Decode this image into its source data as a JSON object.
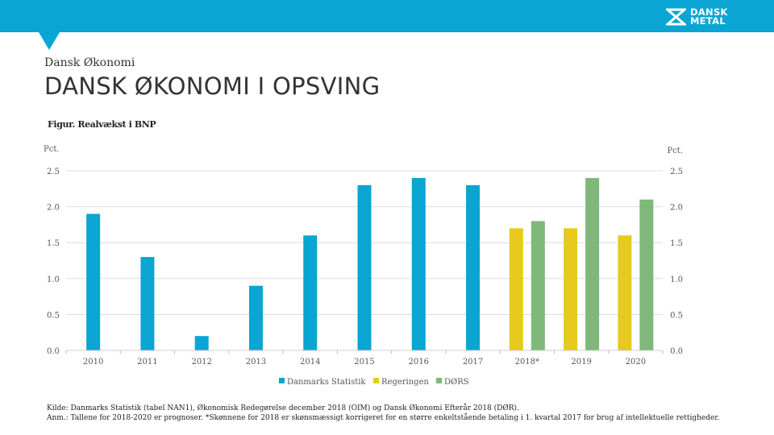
{
  "header": {
    "brand_line1": "DANSK",
    "brand_line2": "METAL",
    "section": "Dansk Økonomi",
    "title": "DANSK ØKONOMI I OPSVING"
  },
  "colors": {
    "header_bg": "#0aa5d3",
    "series_dst": "#0aa5d3",
    "series_reg": "#e6ca1d",
    "series_dors": "#80b879",
    "grid": "#dcdcdc"
  },
  "chart_data": {
    "type": "bar",
    "title": "Figur. Realvækst i BNP",
    "ylabel_left": "Pct.",
    "ylabel_right": "Pct.",
    "ylim": [
      0,
      2.5
    ],
    "yticks": [
      "0.0",
      "0.5",
      "1.0",
      "1.5",
      "2.0",
      "2.5"
    ],
    "categories": [
      "2010",
      "2011",
      "2012",
      "2013",
      "2014",
      "2015",
      "2016",
      "2017",
      "2018*",
      "2019",
      "2020"
    ],
    "series": [
      {
        "name": "Danmarks Statistik",
        "values": [
          1.9,
          1.3,
          0.2,
          0.9,
          1.6,
          2.3,
          2.4,
          2.3,
          null,
          null,
          null
        ]
      },
      {
        "name": "Regeringen",
        "values": [
          null,
          null,
          null,
          null,
          null,
          null,
          null,
          null,
          1.7,
          1.7,
          1.6
        ]
      },
      {
        "name": "DØRS",
        "values": [
          null,
          null,
          null,
          null,
          null,
          null,
          null,
          null,
          1.8,
          2.4,
          2.1
        ]
      }
    ],
    "legend_position": "bottom"
  },
  "footnotes": {
    "source": "Kilde: Danmarks Statistik (tabel NAN1), Økonomisk Redegørelse december 2018 (OIM) og Dansk Økonomi Efterår 2018 (DØR).",
    "note": "Anm.: Tallene for 2018-2020 er prognoser. *Skønnene for 2018 er skønsmæssigt korrigeret for en større enkeltstående betaling i 1. kvartal 2017 for brug af intellektuelle rettigheder."
  }
}
